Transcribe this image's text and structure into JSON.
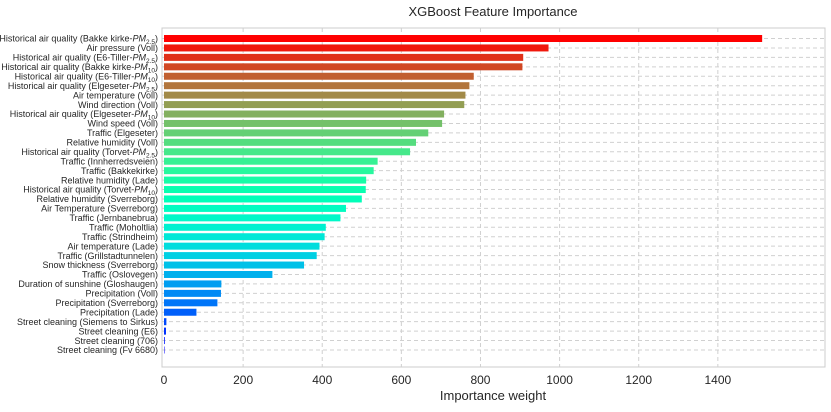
{
  "chart_data": {
    "type": "bar",
    "orientation": "horizontal",
    "title": "XGBoost Feature Importance",
    "xlabel": "Importance weight",
    "ylabel": "",
    "xlim": [
      0,
      1600
    ],
    "xticks": [
      0,
      200,
      400,
      600,
      800,
      1000,
      1200,
      1400
    ],
    "grid": true,
    "legend": "none",
    "color_scheme": "rainbow gradient from #7f00ff (top) to #80ff80 (bottom)",
    "categories": [
      "Historical air quality (Bakke kirke-PM2.5)",
      "Air pressure (Voll)",
      "Historical air quality (E6-Tiller-PM2.5)",
      "Historical air quality (Bakke kirke-PM10)",
      "Historical air quality (E6-Tiller-PM10)",
      "Historical air quality (Elgeseter-PM2.5)",
      "Air temperature (Voll)",
      "Wind direction (Voll)",
      "Historical air quality (Elgeseter-PM10)",
      "Wind speed (Voll)",
      "Traffic (Elgeseter)",
      "Relative humidity (Voll)",
      "Historical air quality (Torvet-PM2.5)",
      "Traffic (Innherredsveien)",
      "Traffic (Bakkekirke)",
      "Relative humidity (Lade)",
      "Historical air quality (Torvet-PM10)",
      "Relative humidity (Sverreborg)",
      "Air Temperature (Sverreborg)",
      "Traffic (Jernbanebrua)",
      "Traffic (Moholtlia)",
      "Traffic (Strindheim)",
      "Air temperature (Lade)",
      "Traffic (Grillstadtunnelen)",
      "Snow thickness (Sverreborg)",
      "Traffic (Oslovegen)",
      "Duration of sunshine (Gloshaugen)",
      "Precipitation (Voll)",
      "Precipitation (Sverreborg)",
      "Precipitation (Lade)",
      "Street cleaning (Siemens to Sirkus)",
      "Street cleaning (E6)",
      "Street cleaning (706)",
      "Street cleaning (Fv 6680)"
    ],
    "labels_rich": [
      {
        "pre": "Historical air quality (Bakke kirke-",
        "it": "PM",
        "sub": "2.5",
        "post": ")"
      },
      {
        "pre": "Air pressure (Voll)"
      },
      {
        "pre": "Historical air quality (E6-Tiller-",
        "it": "PM",
        "sub": "2.5",
        "post": ")"
      },
      {
        "pre": "Historical air quality (Bakke kirke-",
        "it": "PM",
        "sub": "10",
        "post": ")"
      },
      {
        "pre": "Historical air quality (E6-Tiller-",
        "it": "PM",
        "sub": "10",
        "post": ")"
      },
      {
        "pre": "Historical air quality (Elgeseter-",
        "it": "PM",
        "sub": "2.5",
        "post": ")"
      },
      {
        "pre": "Air temperature (Voll)"
      },
      {
        "pre": "Wind direction (Voll)"
      },
      {
        "pre": "Historical air quality (Elgeseter-",
        "it": "PM",
        "sub": "10",
        "post": ")"
      },
      {
        "pre": "Wind speed (Voll)"
      },
      {
        "pre": "Traffic (Elgeseter)"
      },
      {
        "pre": "Relative humidity (Voll)"
      },
      {
        "pre": "Historical air quality (Torvet-",
        "it": "PM",
        "sub": "2.5",
        "post": ")"
      },
      {
        "pre": "Traffic (Innherredsveien)"
      },
      {
        "pre": "Traffic (Bakkekirke)"
      },
      {
        "pre": "Relative humidity (Lade)"
      },
      {
        "pre": "Historical air quality (Torvet-",
        "it": "PM",
        "sub": "10",
        "post": ")"
      },
      {
        "pre": "Relative humidity (Sverreborg)"
      },
      {
        "pre": "Air Temperature (Sverreborg)"
      },
      {
        "pre": "Traffic (Jernbanebrua)"
      },
      {
        "pre": "Traffic (Moholtlia)"
      },
      {
        "pre": "Traffic (Strindheim)"
      },
      {
        "pre": "Air temperature (Lade)"
      },
      {
        "pre": "Traffic (Grillstadtunnelen)"
      },
      {
        "pre": "Snow thickness (Sverreborg)"
      },
      {
        "pre": "Traffic (Oslovegen)"
      },
      {
        "pre": "Duration of sunshine (Gloshaugen)"
      },
      {
        "pre": "Precipitation (Voll)"
      },
      {
        "pre": "Precipitation (Sverreborg)"
      },
      {
        "pre": "Precipitation (Lade)"
      },
      {
        "pre": "Street cleaning (Siemens to Sirkus)"
      },
      {
        "pre": "Street cleaning (E6)"
      },
      {
        "pre": "Street cleaning (706)"
      },
      {
        "pre": "Street cleaning (Fv 6680)"
      }
    ],
    "values": [
      1512,
      972,
      908,
      906,
      783,
      772,
      762,
      759,
      708,
      703,
      668,
      637,
      622,
      540,
      530,
      511,
      510,
      500,
      460,
      446,
      409,
      406,
      393,
      386,
      354,
      274,
      145,
      144,
      135,
      82,
      6,
      5,
      2,
      1
    ]
  }
}
